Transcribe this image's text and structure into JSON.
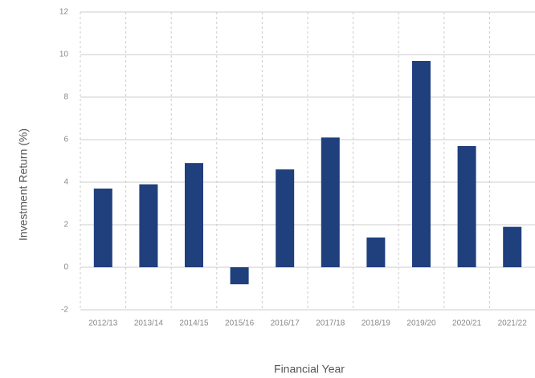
{
  "chart_data": {
    "type": "bar",
    "x_label": "Financial Year",
    "y_label": "Investment Return (%)",
    "categories": [
      "2012/13",
      "2013/14",
      "2014/15",
      "2015/16",
      "2016/17",
      "2017/18",
      "2018/19",
      "2019/20",
      "2020/21",
      "2021/22"
    ],
    "values": [
      3.7,
      3.9,
      4.9,
      -0.8,
      4.6,
      6.1,
      1.4,
      9.7,
      5.7,
      1.9
    ],
    "color": "#1f3f7d",
    "ylim": [
      -2,
      12
    ],
    "yticks": [
      -2,
      0,
      2,
      4,
      6,
      8,
      10,
      12
    ],
    "grid": true
  }
}
